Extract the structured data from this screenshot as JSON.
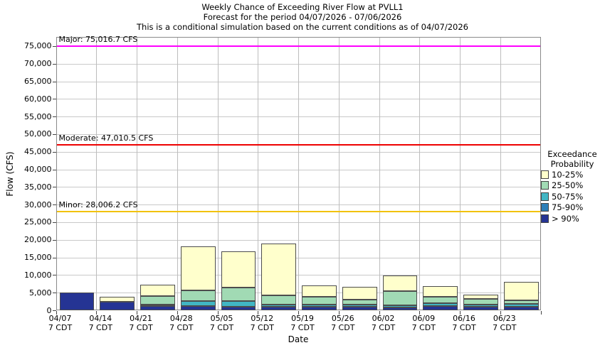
{
  "title": {
    "line1": "Weekly Chance of Exceeding River Flow at PVLL1",
    "line2": "Forecast for the period 04/07/2026 - 07/06/2026",
    "line3": "This is a conditional simulation based on the current conditions as of 04/07/2026"
  },
  "y_axis": {
    "label": "Flow (CFS)",
    "tick_labels": [
      "0",
      "5,000",
      "10,000",
      "15,000",
      "20,000",
      "25,000",
      "30,000",
      "35,000",
      "40,000",
      "45,000",
      "50,000",
      "55,000",
      "60,000",
      "65,000",
      "70,000",
      "75,000"
    ],
    "tick_interval_cfs": 5000
  },
  "x_axis": {
    "label": "Date",
    "tick_sublabel": "7 CDT"
  },
  "legend": {
    "title_line1": "Exceedance",
    "title_line2": "Probability",
    "items": [
      {
        "label": "10-25%",
        "color": "#ffffcc"
      },
      {
        "label": "25-50%",
        "color": "#a1dab4"
      },
      {
        "label": "50-75%",
        "color": "#41b6c4"
      },
      {
        "label": "75-90%",
        "color": "#2c7fb8"
      },
      {
        "label": "> 90%",
        "color": "#253494"
      }
    ]
  },
  "chart_data": {
    "type": "bar",
    "stacked": true,
    "title": "Weekly Chance of Exceeding River Flow at PVLL1",
    "xlabel": "Date",
    "ylabel": "Flow (CFS)",
    "ylim": [
      0,
      77600
    ],
    "grid": true,
    "legend_position": "right",
    "categories": [
      "04/07",
      "04/14",
      "04/21",
      "04/28",
      "05/05",
      "05/12",
      "05/19",
      "05/26",
      "06/02",
      "06/09",
      "06/16",
      "06/23"
    ],
    "series_order_bottom_to_top": [
      "> 90%",
      "75-90%",
      "50-75%",
      "25-50%",
      "10-25%"
    ],
    "cumulative_tops_cfs": [
      [
        5100,
        5100,
        5100,
        5100,
        5100
      ],
      [
        2400,
        2400,
        2400,
        2400,
        3900
      ],
      [
        1200,
        1200,
        1650,
        4100,
        7300
      ],
      [
        1300,
        1300,
        2600,
        5700,
        18100
      ],
      [
        1000,
        1000,
        2600,
        6500,
        16700
      ],
      [
        1000,
        1000,
        1600,
        4300,
        18900
      ],
      [
        1100,
        1100,
        1700,
        3900,
        7000
      ],
      [
        1000,
        1000,
        1650,
        3100,
        6700
      ],
      [
        900,
        900,
        1450,
        5500,
        9800
      ],
      [
        1300,
        1300,
        2100,
        3900,
        6900
      ],
      [
        1000,
        1000,
        1650,
        3300,
        4500
      ],
      [
        1100,
        1100,
        1900,
        2900,
        8000
      ]
    ],
    "thresholds": [
      {
        "name": "Major",
        "label": "Major: 75,016.7 CFS",
        "value_cfs": 75016.7,
        "color": "#ff00ff"
      },
      {
        "name": "Moderate",
        "label": "Moderate: 47,010.5 CFS",
        "value_cfs": 47010.5,
        "color": "#ee0000"
      },
      {
        "name": "Minor",
        "label": "Minor: 28,006.2 CFS",
        "value_cfs": 28006.2,
        "color": "#f2c200"
      }
    ]
  }
}
